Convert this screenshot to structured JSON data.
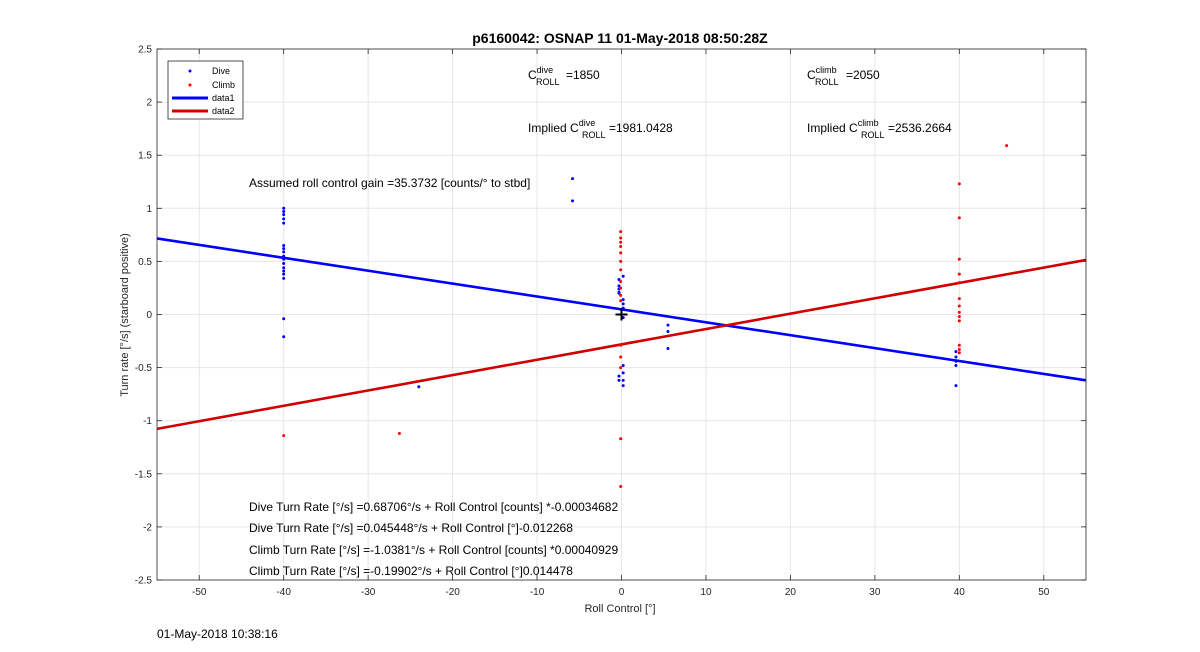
{
  "figure": {
    "timestamp": "01-May-2018 10:38:16"
  },
  "chart_data": {
    "type": "scatter",
    "title": "p6160042: OSNAP 11 01-May-2018 08:50:28Z",
    "xlabel": "Roll Control [°]",
    "ylabel": "Turn rate [°/s] (starboard positive)",
    "xlim": [
      -55,
      55
    ],
    "ylim": [
      -2.5,
      2.5
    ],
    "xticks": [
      -50,
      -40,
      -30,
      -20,
      -10,
      0,
      10,
      20,
      30,
      40,
      50
    ],
    "yticks": [
      -2.5,
      -2,
      -1.5,
      -1,
      -0.5,
      0,
      0.5,
      1,
      1.5,
      2,
      2.5
    ],
    "xtick_labels": [
      "-50",
      "-40",
      "-30",
      "-20",
      "-10",
      "0",
      "10",
      "20",
      "30",
      "40",
      "50"
    ],
    "ytick_labels": [
      "-2.5",
      "-2",
      "-1.5",
      "-1",
      "-0.5",
      "0",
      "0.5",
      "1",
      "1.5",
      "2",
      "2.5"
    ],
    "grid": true,
    "legend_position": "top-left",
    "colors": {
      "dive": "#0000ff",
      "climb": "#ff0000",
      "data1": "#0000ff",
      "data2": "#d00000"
    },
    "series": [
      {
        "name": "Dive",
        "kind": "points",
        "x": [
          -40,
          -40,
          -40,
          -40,
          -40,
          -40,
          -40,
          -40,
          -40,
          -40,
          -40,
          -40,
          -40,
          -40,
          -40,
          -40,
          -40,
          -5.8,
          -5.8,
          -0.3,
          -0.3,
          -0.3,
          -0.3,
          -0.3,
          -0.3,
          -0.3,
          0.2,
          0.2,
          0.2,
          0.2,
          0.2,
          0.2,
          0.2,
          0.2,
          0.2,
          5.5,
          5.5,
          5.5,
          39.6,
          39.6,
          39.6,
          39.6,
          39.6,
          -24
        ],
        "y": [
          1.0,
          0.97,
          0.94,
          0.9,
          0.86,
          0.65,
          0.62,
          0.59,
          0.55,
          0.52,
          0.48,
          0.44,
          0.41,
          0.38,
          0.34,
          -0.04,
          -0.21,
          1.28,
          1.07,
          0.33,
          0.27,
          0.24,
          0.21,
          0.2,
          -0.58,
          -0.62,
          0.36,
          0.14,
          0.1,
          0.06,
          -0.03,
          -0.48,
          -0.55,
          -0.62,
          -0.67,
          -0.1,
          -0.16,
          -0.32,
          -0.35,
          -0.4,
          -0.44,
          -0.48,
          -0.67,
          -0.68
        ],
        "color": "#0000ff"
      },
      {
        "name": "Climb",
        "kind": "points",
        "x": [
          -40,
          -26.3,
          -0.1,
          -0.1,
          -0.1,
          -0.1,
          -0.1,
          -0.1,
          -0.1,
          -0.1,
          -0.1,
          -0.1,
          -0.1,
          -0.1,
          -0.1,
          -0.1,
          -0.1,
          -0.1,
          40,
          40,
          40,
          40,
          40,
          40,
          40,
          40,
          40,
          40,
          40,
          40,
          40,
          45.6
        ],
        "y": [
          -1.14,
          -1.12,
          0.78,
          0.72,
          0.68,
          0.64,
          0.58,
          0.5,
          0.42,
          0.31,
          0.25,
          0.18,
          0.13,
          -0.29,
          -0.4,
          -0.5,
          -1.17,
          -1.62,
          1.23,
          0.91,
          0.52,
          0.38,
          0.3,
          0.15,
          0.08,
          0.02,
          -0.02,
          -0.06,
          -0.29,
          -0.33,
          -0.36,
          1.59
        ],
        "color": "#ff0000"
      },
      {
        "name": "data1",
        "kind": "line",
        "x": [
          -55,
          55
        ],
        "y": [
          0.716,
          -0.62
        ],
        "color": "#0000ff"
      },
      {
        "name": "data2",
        "kind": "line",
        "x": [
          -55,
          55
        ],
        "y": [
          -1.077,
          0.514
        ],
        "color": "#d00000"
      }
    ],
    "marker": {
      "x": 0,
      "y": 0,
      "symbol": "+"
    },
    "annotations": {
      "c_dive_main": "C",
      "c_dive_sup": "dive",
      "c_dive_sub": "ROLL",
      "c_dive_val": "=1850",
      "c_climb_main": "C",
      "c_climb_sup": "climb",
      "c_climb_sub": "ROLL",
      "c_climb_val": "=2050",
      "implied_prefix": "Implied C",
      "implied_dive_sup": "dive",
      "implied_dive_sub": "ROLL",
      "implied_dive_val": "=1981.0428",
      "implied_climb_sup": "climb",
      "implied_climb_sub": "ROLL",
      "implied_climb_val": "=2536.2664",
      "gain": "Assumed roll control gain =35.3732 [counts/° to stbd]",
      "eq1": "Dive Turn Rate [°/s] =0.68706°/s + Roll Control [counts] *-0.00034682",
      "eq2": "Dive Turn Rate [°/s] =0.045448°/s + Roll Control [°]-0.012268",
      "eq3": "Climb Turn Rate [°/s] =-1.0381°/s + Roll Control [counts] *0.00040929",
      "eq4": "Climb Turn Rate [°/s] =-0.19902°/s + Roll Control [°]0.014478"
    }
  }
}
